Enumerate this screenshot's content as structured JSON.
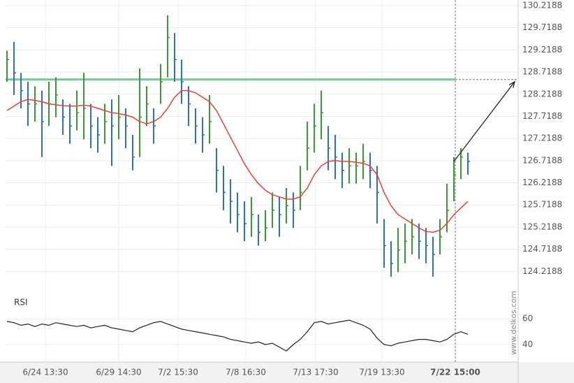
{
  "chart_data": {
    "type": "ohlc",
    "watermark": "www.delkos.com",
    "xlim": [
      -0.2,
      73.2
    ],
    "xticks": [
      {
        "value": 5.5,
        "label": "6/24 13:30"
      },
      {
        "value": 16,
        "label": "6/29 14:30"
      },
      {
        "value": 24.5,
        "label": "7/2 15:30"
      },
      {
        "value": 34.2,
        "label": "7/8 16:30"
      },
      {
        "value": 44.2,
        "label": "7/13 17:30"
      },
      {
        "value": 53.7,
        "label": "7/19 13:30"
      },
      {
        "value": 64.2,
        "label": "7/22 15:00"
      }
    ],
    "ylim": [
      123.75,
      130.2188
    ],
    "yticks": [
      124.2188,
      124.7188,
      125.2188,
      125.7188,
      126.2188,
      126.7188,
      127.2188,
      127.7188,
      128.2188,
      128.7188,
      129.2188,
      129.7188,
      130.2188
    ],
    "up_color": "#3a9a3a",
    "down_color": "#2f6fbf",
    "high": [
      129.2,
      129.4,
      128.7,
      128.5,
      128.4,
      128.3,
      128.5,
      128.6,
      128.1,
      128.0,
      128.3,
      128.7,
      128.0,
      127.7,
      128.0,
      128.1,
      128.2,
      127.9,
      127.3,
      128.8,
      128.4,
      127.9,
      128.9,
      130.0,
      129.6,
      129.0,
      128.4,
      127.9,
      127.7,
      128.2,
      127.0,
      126.6,
      126.3,
      126.0,
      125.8,
      125.9,
      125.5,
      125.6,
      126.0,
      125.9,
      126.1,
      126.0,
      126.6,
      127.6,
      128.0,
      128.3,
      127.5,
      127.3,
      126.9,
      127.0,
      126.9,
      127.1,
      126.9,
      126.6,
      125.4,
      124.9,
      125.2,
      125.3,
      125.4,
      125.3,
      125.2,
      125.0,
      125.4,
      126.2,
      126.8,
      127.0,
      126.9
    ],
    "low": [
      128.5,
      128.2,
      127.9,
      127.5,
      127.6,
      126.8,
      127.5,
      127.7,
      127.3,
      127.1,
      127.4,
      127.2,
      127.0,
      126.9,
      127.1,
      126.6,
      127.2,
      127.0,
      126.5,
      126.8,
      127.5,
      127.1,
      128.0,
      128.6,
      128.5,
      128.0,
      127.5,
      127.1,
      126.9,
      127.1,
      126.0,
      125.6,
      125.3,
      125.1,
      124.9,
      125.0,
      124.8,
      124.9,
      125.2,
      125.0,
      125.3,
      125.2,
      125.6,
      126.5,
      126.9,
      127.2,
      126.5,
      126.3,
      126.1,
      126.2,
      126.2,
      126.3,
      126.1,
      125.3,
      124.3,
      124.1,
      124.2,
      124.4,
      124.6,
      124.5,
      124.4,
      124.1,
      124.6,
      125.1,
      125.8,
      126.3,
      126.4
    ],
    "close": [
      129.0,
      128.7,
      128.3,
      128.0,
      128.0,
      127.6,
      128.0,
      128.2,
      127.7,
      127.5,
      127.8,
      127.9,
      127.5,
      127.3,
      127.6,
      127.5,
      127.7,
      127.5,
      126.8,
      127.7,
      128.0,
      127.5,
      128.5,
      129.5,
      129.0,
      128.5,
      128.0,
      127.5,
      127.3,
      127.6,
      126.5,
      126.0,
      125.8,
      125.5,
      125.3,
      125.5,
      125.1,
      125.2,
      125.6,
      125.5,
      125.7,
      125.6,
      126.0,
      127.0,
      127.5,
      127.8,
      127.0,
      126.8,
      126.5,
      126.6,
      126.6,
      126.7,
      126.5,
      126.0,
      124.8,
      124.4,
      124.7,
      124.9,
      125.0,
      124.9,
      124.8,
      124.6,
      125.0,
      125.6,
      126.4,
      126.8,
      126.7
    ],
    "ma": {
      "color": "#e8413a",
      "values": [
        127.85,
        127.95,
        128.05,
        128.1,
        128.08,
        128.05,
        128.0,
        127.98,
        127.96,
        127.95,
        127.95,
        127.97,
        127.95,
        127.9,
        127.85,
        127.8,
        127.78,
        127.75,
        127.7,
        127.6,
        127.55,
        127.6,
        127.7,
        127.9,
        128.15,
        128.3,
        128.3,
        128.25,
        128.15,
        128.05,
        127.85,
        127.55,
        127.25,
        126.95,
        126.65,
        126.4,
        126.2,
        126.05,
        125.95,
        125.9,
        125.85,
        125.85,
        125.9,
        126.1,
        126.4,
        126.6,
        126.7,
        126.72,
        126.7,
        126.7,
        126.68,
        126.66,
        126.6,
        126.4,
        126.0,
        125.7,
        125.5,
        125.4,
        125.3,
        125.2,
        125.12,
        125.1,
        125.15,
        125.3,
        125.5,
        125.65,
        125.8
      ]
    },
    "resistance": {
      "value": 128.55,
      "color": "#7cc49a"
    },
    "arrow": {
      "x": [
        64,
        72.7
      ],
      "y": [
        126.7,
        128.5
      ]
    },
    "rsi": {
      "label": "RSI",
      "ylim": [
        28,
        77
      ],
      "yticks": [
        60,
        40
      ],
      "values": [
        58,
        57,
        55,
        56,
        54,
        56,
        55,
        57,
        56,
        55,
        54,
        55,
        53,
        54,
        55,
        53,
        52,
        51,
        50,
        53,
        55,
        57,
        58,
        56,
        54,
        52,
        51,
        50,
        49,
        48,
        47,
        46,
        44,
        43,
        42,
        41,
        42,
        40,
        41,
        38,
        35,
        40,
        44,
        50,
        57,
        58,
        56,
        57,
        58,
        59,
        57,
        55,
        52,
        45,
        40,
        39,
        41,
        42,
        43,
        44,
        44,
        43,
        42,
        44,
        48,
        50,
        48
      ]
    }
  }
}
